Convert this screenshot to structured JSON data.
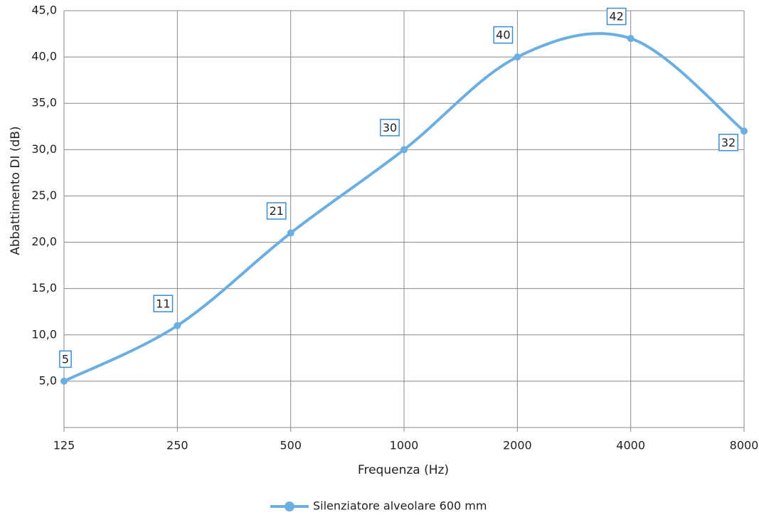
{
  "chart_data": {
    "type": "line",
    "x_label": "Frequenza (Hz)",
    "y_label": "Abbattimento DI (dB)",
    "categories": [
      "125",
      "250",
      "500",
      "1000",
      "2000",
      "4000",
      "8000"
    ],
    "series": [
      {
        "name": "Silenziatore alveolare 600 mm",
        "color": "#6aaee2",
        "values": [
          5,
          11,
          21,
          30,
          40,
          42,
          32
        ]
      }
    ],
    "ylim": [
      0,
      45
    ],
    "yticks": [
      {
        "value": 5,
        "label": "5,0"
      },
      {
        "value": 10,
        "label": "10,0"
      },
      {
        "value": 15,
        "label": "15,0"
      },
      {
        "value": 20,
        "label": "20,0"
      },
      {
        "value": 25,
        "label": "25,0"
      },
      {
        "value": 30,
        "label": "30,0"
      },
      {
        "value": 35,
        "label": "35,0"
      },
      {
        "value": 40,
        "label": "40,0"
      },
      {
        "value": 45,
        "label": "45,0"
      }
    ],
    "grid": true,
    "data_labels": true,
    "legend": "bottom"
  }
}
